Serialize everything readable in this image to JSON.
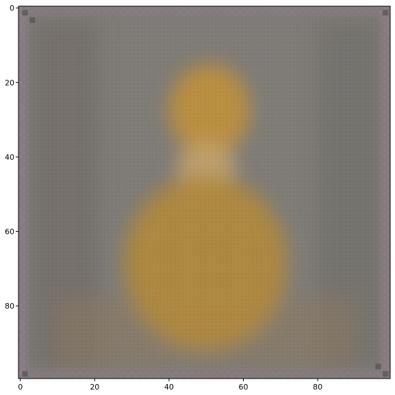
{
  "chart_data": {
    "type": "heatmap",
    "title": "",
    "xlabel": "",
    "ylabel": "",
    "grid": false,
    "xlim": [
      -0.5,
      99.5
    ],
    "ylim": [
      99.5,
      -0.5
    ],
    "y_axis_inverted": true,
    "xticks": [
      0,
      20,
      40,
      60,
      80
    ],
    "xtick_labels": [
      "0",
      "20",
      "40",
      "60",
      "80"
    ],
    "yticks": [
      0,
      20,
      40,
      60,
      80
    ],
    "ytick_labels": [
      "0",
      "20",
      "40",
      "60",
      "80"
    ],
    "image_size": [
      100,
      100
    ],
    "colors": {
      "background_gray": "#7f7c78",
      "dark_gray": "#6d6862",
      "warm_gray": "#8a7a62",
      "amber": "#b38a3c",
      "gold": "#c0913a",
      "light_gold": "#c7a66c",
      "border_pink": "#a07c82",
      "border_blue": "#7e7f92",
      "corner_dark": "#4f4a4c"
    },
    "regions": [
      {
        "name": "border-frame",
        "x": [
          0,
          99
        ],
        "y": [
          0,
          99
        ],
        "color": "border_pink"
      },
      {
        "name": "background",
        "x": [
          3,
          96
        ],
        "y": [
          3,
          96
        ],
        "color": "background_gray"
      },
      {
        "name": "upper-gold-blob",
        "x": [
          40,
          62
        ],
        "y": [
          15,
          40
        ],
        "color": "gold"
      },
      {
        "name": "light-center-patch",
        "x": [
          42,
          58
        ],
        "y": [
          36,
          50
        ],
        "color": "light_gold"
      },
      {
        "name": "lower-amber-body",
        "x": [
          28,
          72
        ],
        "y": [
          45,
          92
        ],
        "color": "amber"
      }
    ]
  }
}
